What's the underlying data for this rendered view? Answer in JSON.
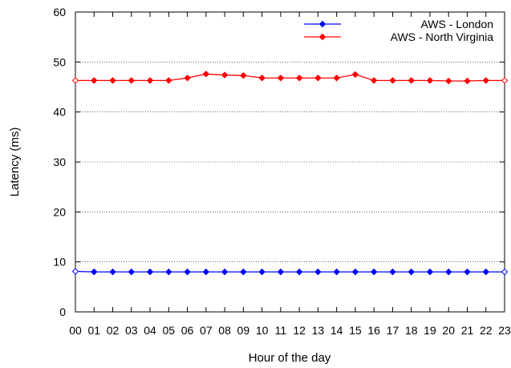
{
  "chart_data": {
    "type": "line",
    "title": "",
    "xlabel": "Hour of the day",
    "ylabel": "Latency (ms)",
    "categories": [
      "00",
      "01",
      "02",
      "03",
      "04",
      "05",
      "06",
      "07",
      "08",
      "09",
      "10",
      "11",
      "12",
      "13",
      "14",
      "15",
      "16",
      "17",
      "18",
      "19",
      "20",
      "21",
      "22",
      "23"
    ],
    "ylim": [
      0,
      60
    ],
    "yticks": [
      0,
      10,
      20,
      30,
      40,
      50,
      60
    ],
    "grid": "horizontal dotted",
    "legend_position": "top-right",
    "series": [
      {
        "name": "AWS - London",
        "color": "#0000ff",
        "values": [
          8.1,
          8.0,
          8.0,
          8.0,
          8.0,
          8.0,
          8.0,
          8.0,
          8.0,
          8.0,
          8.0,
          8.0,
          8.0,
          8.0,
          8.0,
          8.0,
          8.0,
          8.0,
          8.0,
          8.0,
          8.0,
          8.0,
          8.0,
          8.0
        ]
      },
      {
        "name": "AWS - North Virginia",
        "color": "#ff0000",
        "values": [
          46.3,
          46.3,
          46.3,
          46.3,
          46.3,
          46.3,
          46.8,
          47.6,
          47.4,
          47.3,
          46.8,
          46.8,
          46.8,
          46.8,
          46.8,
          47.5,
          46.3,
          46.3,
          46.3,
          46.3,
          46.2,
          46.2,
          46.3,
          46.3
        ]
      }
    ]
  }
}
